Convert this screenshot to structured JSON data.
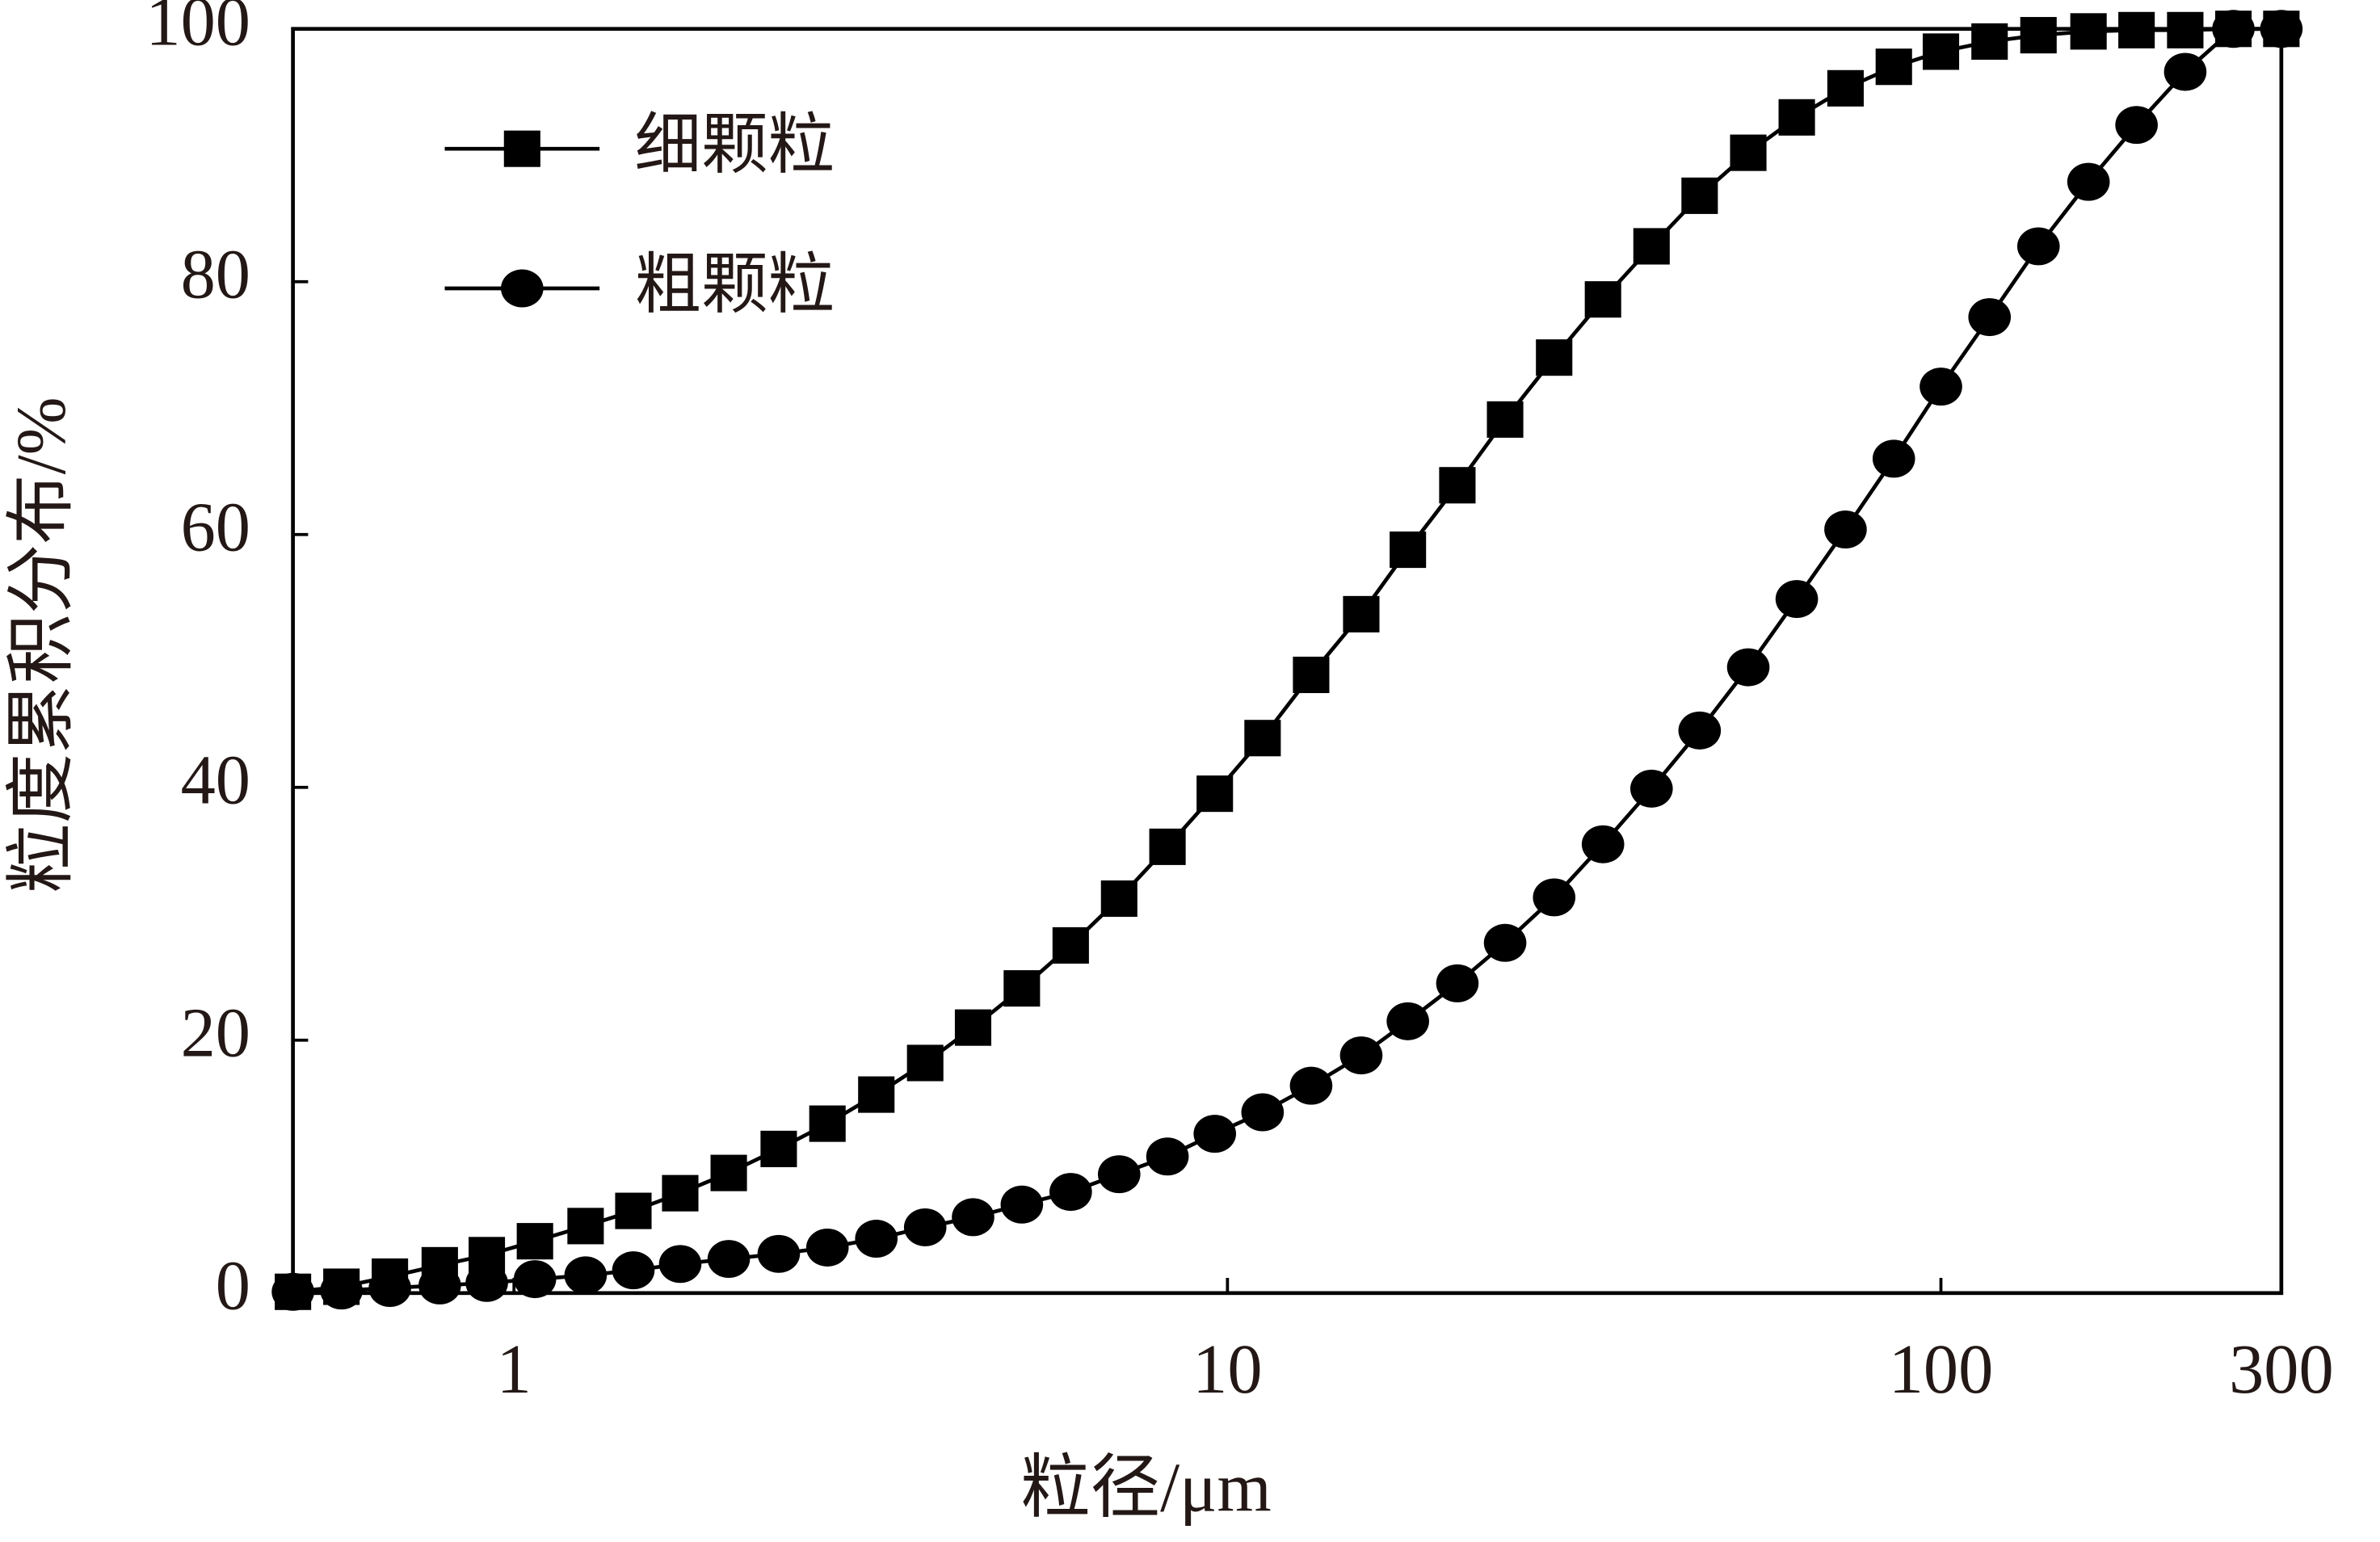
{
  "chart_data": {
    "type": "line",
    "xlabel": "粒径/μm",
    "ylabel": "粒度累积分布/%",
    "xscale": "log",
    "x": [
      0.49,
      0.573,
      0.67,
      0.787,
      0.916,
      1.07,
      1.26,
      1.47,
      1.71,
      2.0,
      2.35,
      2.75,
      3.22,
      3.77,
      4.4,
      5.15,
      6.03,
      7.05,
      8.24,
      9.6,
      11.2,
      13.1,
      15.4,
      17.9,
      21.0,
      24.5,
      28.7,
      33.6,
      39.3,
      45.9,
      53.7,
      62.8,
      73.5,
      85.9,
      100,
      117,
      137,
      161,
      188,
      220,
      257,
      300
    ],
    "series": [
      {
        "name": "细颗粒",
        "color": "#000000",
        "marker": "square",
        "values": [
          0.1,
          0.5,
          1.3,
          2.2,
          3.0,
          4.1,
          5.3,
          6.5,
          7.9,
          9.5,
          11.4,
          13.4,
          15.7,
          18.2,
          21,
          24.1,
          27.5,
          31.2,
          35.3,
          39.5,
          43.9,
          48.9,
          53.7,
          58.8,
          63.9,
          69.1,
          74,
          78.6,
          82.8,
          86.8,
          90.2,
          93,
          95.3,
          97,
          98.2,
          99,
          99.5,
          99.8,
          99.9,
          99.9,
          100,
          100
        ]
      },
      {
        "name": "粗颗粒",
        "color": "#000000",
        "marker": "circle",
        "values": [
          0.1,
          0.2,
          0.4,
          0.6,
          0.8,
          1.1,
          1.4,
          1.8,
          2.3,
          2.7,
          3.1,
          3.6,
          4.3,
          5.2,
          6.0,
          7.0,
          8.0,
          9.4,
          10.8,
          12.6,
          14.3,
          16.4,
          18.8,
          21.5,
          24.5,
          27.7,
          31.3,
          35.5,
          39.9,
          44.5,
          49.5,
          54.9,
          60.4,
          66,
          71.7,
          77.2,
          82.8,
          87.9,
          92.4,
          96.6,
          100,
          100
        ]
      }
    ],
    "xlim": [
      0.49,
      300
    ],
    "xticks": [
      1,
      10,
      100,
      300
    ],
    "ylim": [
      0,
      100
    ],
    "yticks": [
      0,
      20,
      40,
      60,
      80,
      100
    ],
    "grid": false,
    "legend": "upper left"
  }
}
